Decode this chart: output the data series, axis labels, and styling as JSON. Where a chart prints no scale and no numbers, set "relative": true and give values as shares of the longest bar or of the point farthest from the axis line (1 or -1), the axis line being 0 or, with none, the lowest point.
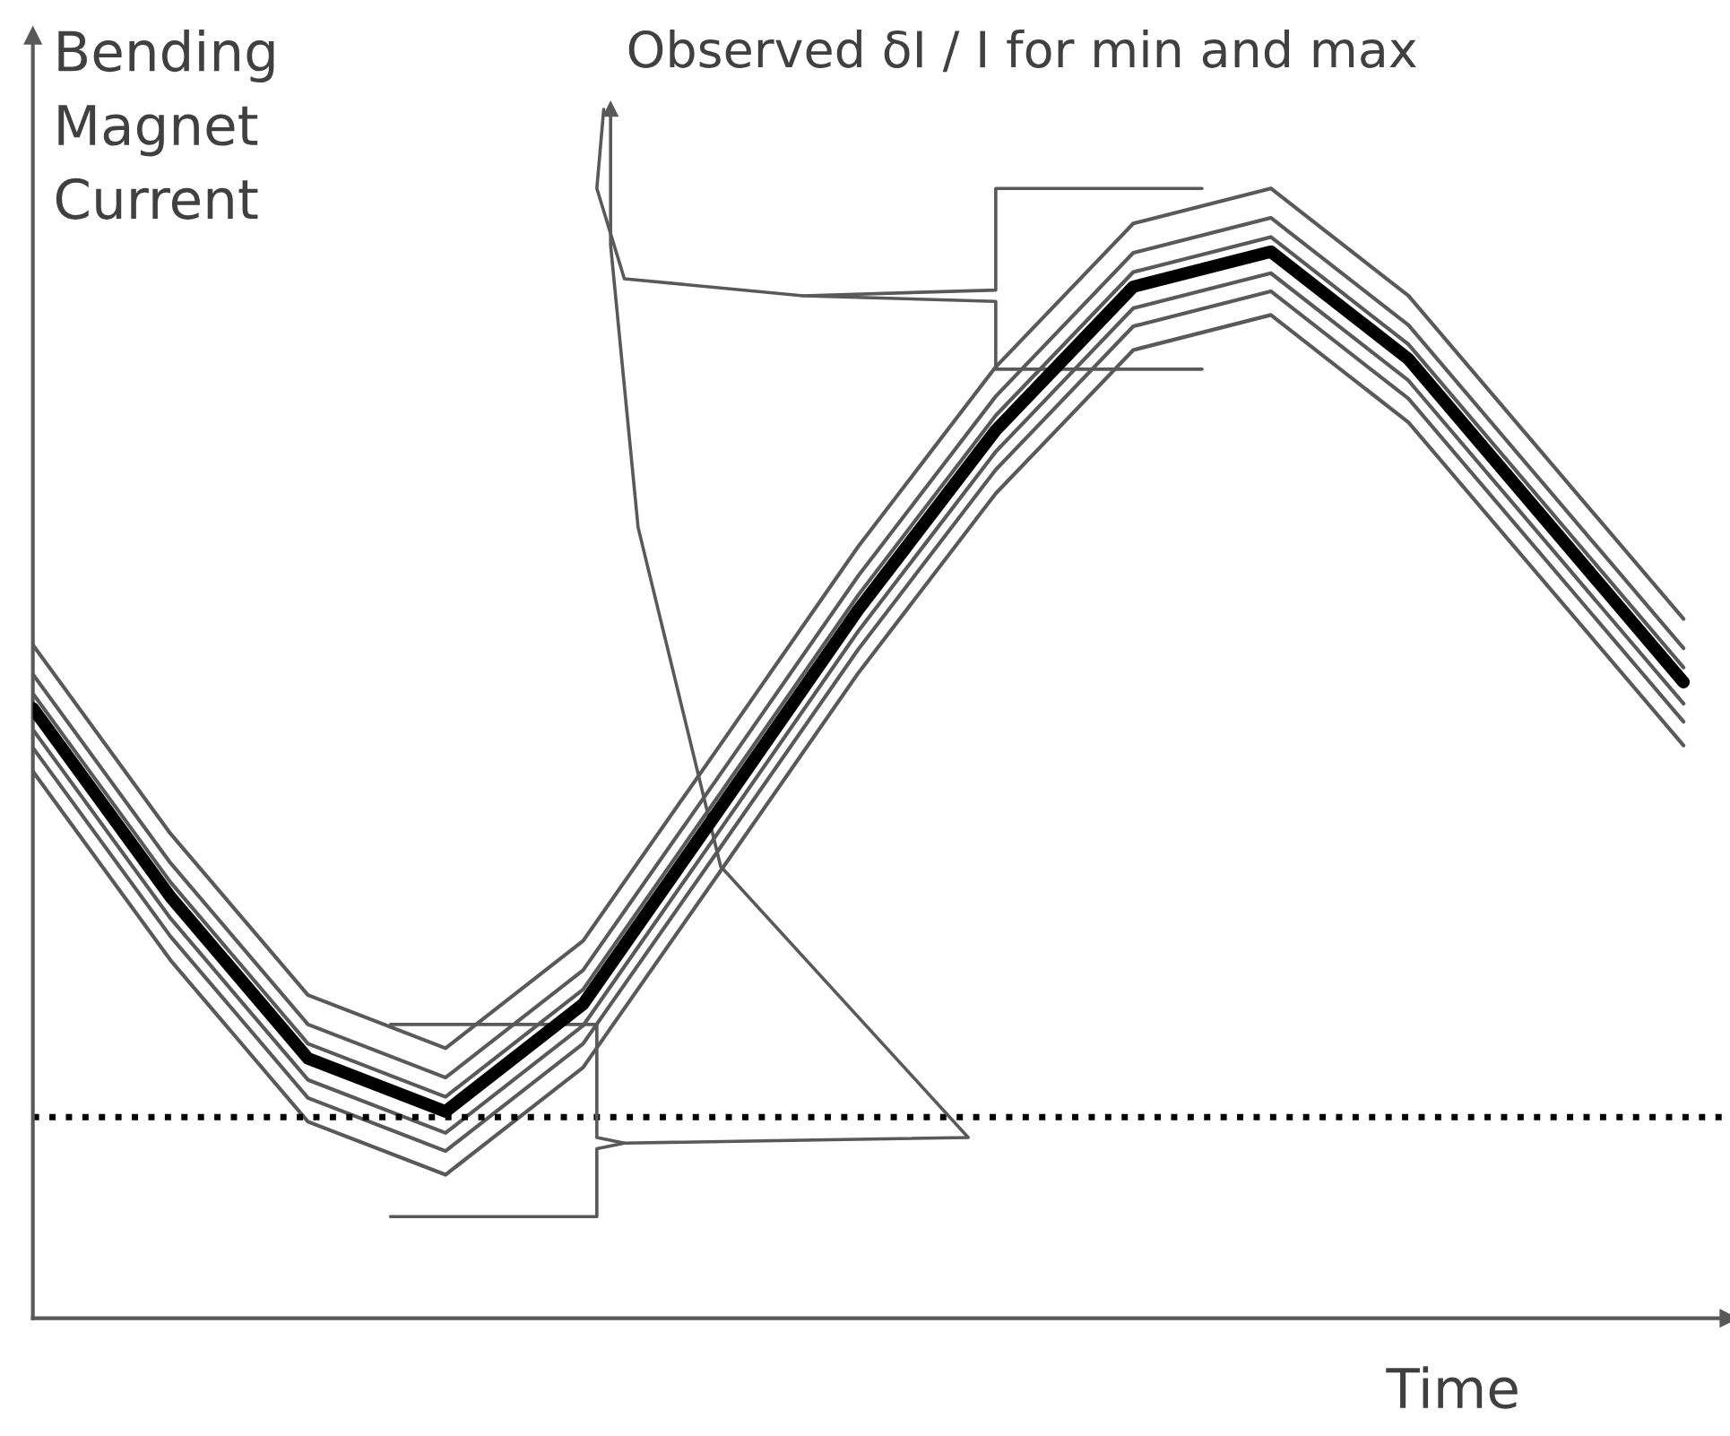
{
  "chart_data": {
    "type": "line",
    "relative": true,
    "xlabel": "Time",
    "ylabel": "Bending Magnet Current",
    "categories": [
      null,
      null,
      null,
      null,
      null,
      null,
      null,
      null,
      null,
      null,
      null,
      null,
      null
    ],
    "series": [
      {
        "color": "#000000",
        "values": [
          0.54,
          0.373,
          0.23,
          0.183,
          0.278,
          0.452,
          0.627,
          0.786,
          0.913,
          0.944,
          0.849,
          0.706,
          0.563
        ]
      },
      {
        "color": "#595959",
        "values": [
          0.596,
          0.429,
          0.286,
          0.239,
          0.334,
          0.508,
          0.683,
          0.842,
          0.969,
          1.0,
          0.905,
          0.762,
          0.619
        ]
      },
      {
        "color": "#595959",
        "values": [
          0.57,
          0.403,
          0.26,
          0.213,
          0.308,
          0.482,
          0.657,
          0.816,
          0.943,
          0.974,
          0.879,
          0.736,
          0.593
        ]
      },
      {
        "color": "#595959",
        "values": [
          0.553,
          0.386,
          0.243,
          0.196,
          0.291,
          0.465,
          0.64,
          0.799,
          0.926,
          0.957,
          0.862,
          0.719,
          0.576
        ]
      },
      {
        "color": "#595959",
        "values": [
          0.521,
          0.354,
          0.211,
          0.164,
          0.259,
          0.433,
          0.608,
          0.767,
          0.894,
          0.925,
          0.83,
          0.687,
          0.544
        ]
      },
      {
        "color": "#595959",
        "values": [
          0.505,
          0.338,
          0.195,
          0.148,
          0.243,
          0.417,
          0.592,
          0.751,
          0.878,
          0.909,
          0.814,
          0.671,
          0.528
        ]
      },
      {
        "color": "#595959",
        "values": [
          0.484,
          0.317,
          0.174,
          0.127,
          0.222,
          0.396,
          0.571,
          0.73,
          0.857,
          0.888,
          0.793,
          0.65,
          0.507
        ]
      }
    ],
    "ref_lines": [
      {
        "axis": "y",
        "value": 0.178,
        "color": "#000000",
        "line_style": "dotted"
      }
    ],
    "annotations": [
      "Observed δI / I for min and max"
    ],
    "line_style": "solid",
    "marker": "none"
  }
}
